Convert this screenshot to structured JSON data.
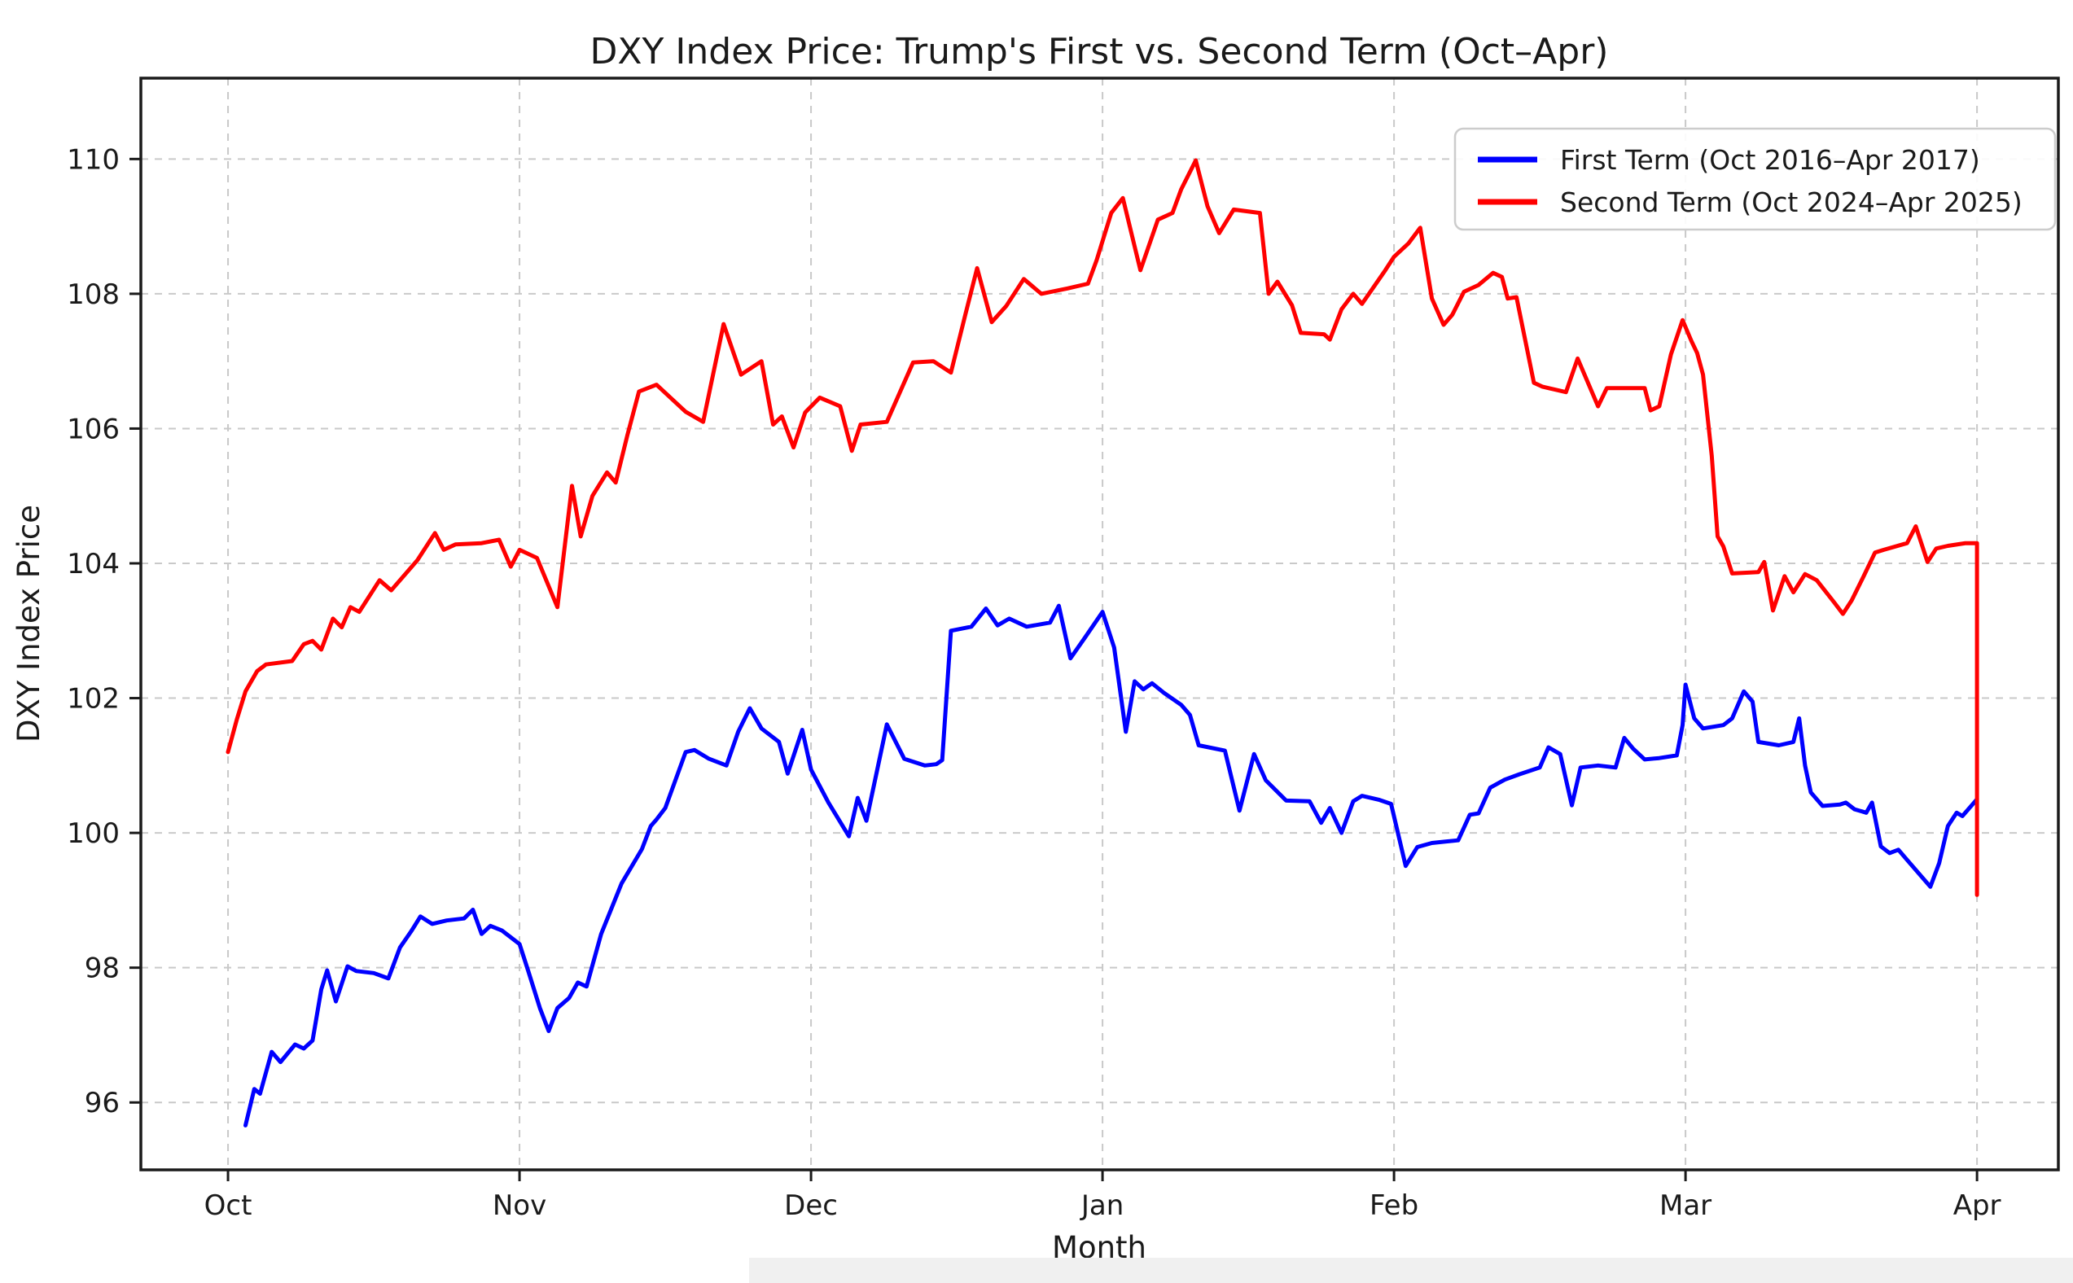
{
  "chart_data": {
    "type": "line",
    "title": "DXY Index Price: Trump's First vs. Second Term (Oct–Apr)",
    "xlabel": "Month",
    "ylabel": "DXY Index Price",
    "grid": true,
    "grid_style": "dashed-light-gray",
    "background_color": "#ffffff",
    "xtick_labels": [
      "Oct",
      "Nov",
      "Dec",
      "Jan",
      "Feb",
      "Mar",
      "Apr"
    ],
    "xtick_positions": [
      0,
      1,
      2,
      3,
      4,
      5,
      6
    ],
    "ytick_values": [
      96,
      98,
      100,
      102,
      104,
      106,
      108,
      110
    ],
    "xlim": [
      -0.299,
      6.279
    ],
    "ylim": [
      95.0,
      111.2
    ],
    "x_unit": "months since Oct 1 (0 = Oct, 6 = Apr)",
    "legend": {
      "position": "upper right",
      "entries": [
        {
          "label": "First Term (Oct 2016–Apr 2017)",
          "color": "#0000ff"
        },
        {
          "label": "Second Term (Oct 2024–Apr 2025)",
          "color": "#ff0000"
        }
      ]
    },
    "series": [
      {
        "name": "First Term (Oct 2016–Apr 2017)",
        "color": "#0000ff",
        "points": [
          [
            0.06,
            95.66
          ],
          [
            0.09,
            96.2
          ],
          [
            0.11,
            96.13
          ],
          [
            0.15,
            96.75
          ],
          [
            0.18,
            96.6
          ],
          [
            0.23,
            96.86
          ],
          [
            0.26,
            96.8
          ],
          [
            0.29,
            96.92
          ],
          [
            0.32,
            97.68
          ],
          [
            0.34,
            97.96
          ],
          [
            0.37,
            97.5
          ],
          [
            0.41,
            98.02
          ],
          [
            0.44,
            97.95
          ],
          [
            0.5,
            97.92
          ],
          [
            0.55,
            97.84
          ],
          [
            0.59,
            98.3
          ],
          [
            0.63,
            98.55
          ],
          [
            0.66,
            98.76
          ],
          [
            0.7,
            98.65
          ],
          [
            0.75,
            98.7
          ],
          [
            0.81,
            98.73
          ],
          [
            0.84,
            98.86
          ],
          [
            0.87,
            98.5
          ],
          [
            0.9,
            98.62
          ],
          [
            0.94,
            98.55
          ],
          [
            1.0,
            98.35
          ],
          [
            1.03,
            97.95
          ],
          [
            1.07,
            97.4
          ],
          [
            1.1,
            97.06
          ],
          [
            1.13,
            97.4
          ],
          [
            1.17,
            97.55
          ],
          [
            1.2,
            97.78
          ],
          [
            1.23,
            97.72
          ],
          [
            1.28,
            98.5
          ],
          [
            1.35,
            99.25
          ],
          [
            1.42,
            99.76
          ],
          [
            1.45,
            100.1
          ],
          [
            1.47,
            100.2
          ],
          [
            1.5,
            100.37
          ],
          [
            1.57,
            101.2
          ],
          [
            1.6,
            101.23
          ],
          [
            1.65,
            101.1
          ],
          [
            1.71,
            101.0
          ],
          [
            1.75,
            101.5
          ],
          [
            1.79,
            101.85
          ],
          [
            1.83,
            101.55
          ],
          [
            1.89,
            101.35
          ],
          [
            1.92,
            100.88
          ],
          [
            1.97,
            101.53
          ],
          [
            2.0,
            100.94
          ],
          [
            2.06,
            100.45
          ],
          [
            2.13,
            99.95
          ],
          [
            2.16,
            100.52
          ],
          [
            2.19,
            100.18
          ],
          [
            2.26,
            101.61
          ],
          [
            2.32,
            101.1
          ],
          [
            2.39,
            101.0
          ],
          [
            2.43,
            101.02
          ],
          [
            2.45,
            101.08
          ],
          [
            2.48,
            103.0
          ],
          [
            2.55,
            103.06
          ],
          [
            2.6,
            103.33
          ],
          [
            2.64,
            103.08
          ],
          [
            2.68,
            103.18
          ],
          [
            2.74,
            103.06
          ],
          [
            2.82,
            103.12
          ],
          [
            2.85,
            103.37
          ],
          [
            2.89,
            102.59
          ],
          [
            2.94,
            102.9
          ],
          [
            3.0,
            103.28
          ],
          [
            3.04,
            102.75
          ],
          [
            3.08,
            101.5
          ],
          [
            3.11,
            102.25
          ],
          [
            3.14,
            102.13
          ],
          [
            3.17,
            102.22
          ],
          [
            3.21,
            102.08
          ],
          [
            3.27,
            101.9
          ],
          [
            3.3,
            101.75
          ],
          [
            3.33,
            101.3
          ],
          [
            3.42,
            101.22
          ],
          [
            3.47,
            100.33
          ],
          [
            3.52,
            101.17
          ],
          [
            3.56,
            100.78
          ],
          [
            3.63,
            100.48
          ],
          [
            3.71,
            100.47
          ],
          [
            3.75,
            100.15
          ],
          [
            3.78,
            100.37
          ],
          [
            3.82,
            100.0
          ],
          [
            3.86,
            100.47
          ],
          [
            3.89,
            100.55
          ],
          [
            3.95,
            100.49
          ],
          [
            3.99,
            100.43
          ],
          [
            4.04,
            99.51
          ],
          [
            4.08,
            99.79
          ],
          [
            4.13,
            99.85
          ],
          [
            4.22,
            99.89
          ],
          [
            4.26,
            100.27
          ],
          [
            4.29,
            100.29
          ],
          [
            4.33,
            100.67
          ],
          [
            4.38,
            100.79
          ],
          [
            4.43,
            100.87
          ],
          [
            4.5,
            100.97
          ],
          [
            4.53,
            101.27
          ],
          [
            4.57,
            101.17
          ],
          [
            4.61,
            100.41
          ],
          [
            4.64,
            100.97
          ],
          [
            4.7,
            101.0
          ],
          [
            4.76,
            100.97
          ],
          [
            4.79,
            101.41
          ],
          [
            4.82,
            101.25
          ],
          [
            4.86,
            101.09
          ],
          [
            4.91,
            101.11
          ],
          [
            4.97,
            101.15
          ],
          [
            4.99,
            101.6
          ],
          [
            5.0,
            102.2
          ],
          [
            5.03,
            101.7
          ],
          [
            5.06,
            101.55
          ],
          [
            5.13,
            101.6
          ],
          [
            5.16,
            101.7
          ],
          [
            5.2,
            102.1
          ],
          [
            5.23,
            101.95
          ],
          [
            5.25,
            101.35
          ],
          [
            5.32,
            101.3
          ],
          [
            5.37,
            101.35
          ],
          [
            5.39,
            101.7
          ],
          [
            5.41,
            101.0
          ],
          [
            5.43,
            100.6
          ],
          [
            5.47,
            100.4
          ],
          [
            5.53,
            100.42
          ],
          [
            5.55,
            100.45
          ],
          [
            5.58,
            100.35
          ],
          [
            5.62,
            100.3
          ],
          [
            5.64,
            100.45
          ],
          [
            5.67,
            99.8
          ],
          [
            5.7,
            99.7
          ],
          [
            5.73,
            99.75
          ],
          [
            5.76,
            99.6
          ],
          [
            5.8,
            99.4
          ],
          [
            5.84,
            99.2
          ],
          [
            5.87,
            99.55
          ],
          [
            5.9,
            100.1
          ],
          [
            5.93,
            100.3
          ],
          [
            5.95,
            100.25
          ],
          [
            6.0,
            100.5
          ]
        ]
      },
      {
        "name": "Second Term (Oct 2024–Apr 2025)",
        "color": "#ff0000",
        "points": [
          [
            0.0,
            101.2
          ],
          [
            0.03,
            101.68
          ],
          [
            0.06,
            102.1
          ],
          [
            0.1,
            102.4
          ],
          [
            0.13,
            102.5
          ],
          [
            0.22,
            102.55
          ],
          [
            0.26,
            102.8
          ],
          [
            0.29,
            102.85
          ],
          [
            0.32,
            102.72
          ],
          [
            0.36,
            103.18
          ],
          [
            0.39,
            103.05
          ],
          [
            0.42,
            103.35
          ],
          [
            0.45,
            103.28
          ],
          [
            0.52,
            103.75
          ],
          [
            0.56,
            103.6
          ],
          [
            0.65,
            104.05
          ],
          [
            0.71,
            104.45
          ],
          [
            0.74,
            104.2
          ],
          [
            0.78,
            104.28
          ],
          [
            0.87,
            104.3
          ],
          [
            0.93,
            104.35
          ],
          [
            0.97,
            103.95
          ],
          [
            1.0,
            104.2
          ],
          [
            1.06,
            104.08
          ],
          [
            1.13,
            103.35
          ],
          [
            1.18,
            105.15
          ],
          [
            1.21,
            104.4
          ],
          [
            1.25,
            105.0
          ],
          [
            1.3,
            105.35
          ],
          [
            1.33,
            105.2
          ],
          [
            1.37,
            105.9
          ],
          [
            1.41,
            106.55
          ],
          [
            1.47,
            106.65
          ],
          [
            1.57,
            106.25
          ],
          [
            1.63,
            106.1
          ],
          [
            1.7,
            107.55
          ],
          [
            1.76,
            106.8
          ],
          [
            1.83,
            107.0
          ],
          [
            1.87,
            106.06
          ],
          [
            1.9,
            106.18
          ],
          [
            1.94,
            105.72
          ],
          [
            1.98,
            106.24
          ],
          [
            2.03,
            106.46
          ],
          [
            2.1,
            106.33
          ],
          [
            2.14,
            105.67
          ],
          [
            2.17,
            106.06
          ],
          [
            2.26,
            106.1
          ],
          [
            2.35,
            106.98
          ],
          [
            2.42,
            107.0
          ],
          [
            2.48,
            106.83
          ],
          [
            2.53,
            107.7
          ],
          [
            2.57,
            108.38
          ],
          [
            2.62,
            107.58
          ],
          [
            2.67,
            107.82
          ],
          [
            2.73,
            108.22
          ],
          [
            2.79,
            108.0
          ],
          [
            2.88,
            108.08
          ],
          [
            2.95,
            108.15
          ],
          [
            2.98,
            108.5
          ],
          [
            3.03,
            109.2
          ],
          [
            3.07,
            109.42
          ],
          [
            3.13,
            108.35
          ],
          [
            3.19,
            109.1
          ],
          [
            3.24,
            109.2
          ],
          [
            3.27,
            109.55
          ],
          [
            3.32,
            109.98
          ],
          [
            3.36,
            109.3
          ],
          [
            3.4,
            108.9
          ],
          [
            3.45,
            109.25
          ],
          [
            3.54,
            109.2
          ],
          [
            3.57,
            108.0
          ],
          [
            3.6,
            108.18
          ],
          [
            3.65,
            107.83
          ],
          [
            3.68,
            107.42
          ],
          [
            3.76,
            107.4
          ],
          [
            3.78,
            107.32
          ],
          [
            3.82,
            107.77
          ],
          [
            3.86,
            108.0
          ],
          [
            3.89,
            107.85
          ],
          [
            3.97,
            108.35
          ],
          [
            4.0,
            108.55
          ],
          [
            4.05,
            108.75
          ],
          [
            4.09,
            108.98
          ],
          [
            4.13,
            107.93
          ],
          [
            4.17,
            107.54
          ],
          [
            4.2,
            107.69
          ],
          [
            4.24,
            108.03
          ],
          [
            4.29,
            108.13
          ],
          [
            4.34,
            108.31
          ],
          [
            4.37,
            108.25
          ],
          [
            4.39,
            107.93
          ],
          [
            4.42,
            107.95
          ],
          [
            4.48,
            106.68
          ],
          [
            4.51,
            106.62
          ],
          [
            4.59,
            106.54
          ],
          [
            4.63,
            107.04
          ],
          [
            4.7,
            106.33
          ],
          [
            4.73,
            106.6
          ],
          [
            4.86,
            106.6
          ],
          [
            4.88,
            106.27
          ],
          [
            4.91,
            106.33
          ],
          [
            4.95,
            107.1
          ],
          [
            4.99,
            107.61
          ],
          [
            5.02,
            107.3
          ],
          [
            5.04,
            107.12
          ],
          [
            5.06,
            106.8
          ],
          [
            5.09,
            105.6
          ],
          [
            5.11,
            104.4
          ],
          [
            5.13,
            104.25
          ],
          [
            5.16,
            103.85
          ],
          [
            5.25,
            103.87
          ],
          [
            5.27,
            104.02
          ],
          [
            5.3,
            103.3
          ],
          [
            5.34,
            103.81
          ],
          [
            5.37,
            103.57
          ],
          [
            5.41,
            103.84
          ],
          [
            5.45,
            103.75
          ],
          [
            5.51,
            103.42
          ],
          [
            5.54,
            103.25
          ],
          [
            5.57,
            103.45
          ],
          [
            5.61,
            103.8
          ],
          [
            5.65,
            104.16
          ],
          [
            5.68,
            104.2
          ],
          [
            5.76,
            104.3
          ],
          [
            5.79,
            104.55
          ],
          [
            5.83,
            104.02
          ],
          [
            5.86,
            104.22
          ],
          [
            5.9,
            104.26
          ],
          [
            5.96,
            104.3
          ],
          [
            6.0,
            104.3
          ],
          [
            6.0,
            99.08
          ]
        ]
      }
    ]
  }
}
